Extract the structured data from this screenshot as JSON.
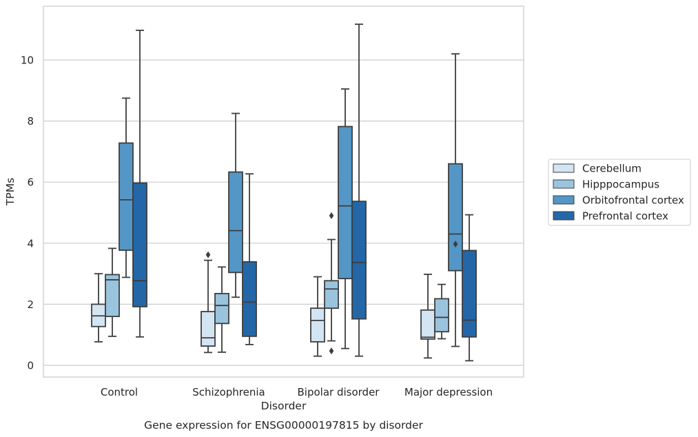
{
  "chart_data": {
    "type": "box",
    "caption": "Gene expression for ENSG00000197815 by disorder",
    "xlabel": "Disorder",
    "ylabel": "TPMs",
    "ylim": [
      -0.4,
      11.8
    ],
    "yticks": [
      0,
      2,
      4,
      6,
      8,
      10
    ],
    "grid": "horizontal",
    "legend_position": "right",
    "categories": [
      "Control",
      "Schizophrenia",
      "Bipolar disorder",
      "Major depression"
    ],
    "series": [
      {
        "name": "Cerebellum",
        "color": "#d3e4f3",
        "boxes": [
          {
            "whislo": 0.77,
            "q1": 1.27,
            "med": 1.62,
            "q3": 2.0,
            "whishi": 3.0,
            "fliers": []
          },
          {
            "whislo": 0.42,
            "q1": 0.63,
            "med": 0.9,
            "q3": 1.76,
            "whishi": 3.44,
            "fliers": [
              3.62
            ]
          },
          {
            "whislo": 0.3,
            "q1": 0.77,
            "med": 1.47,
            "q3": 1.87,
            "whishi": 2.9,
            "fliers": []
          },
          {
            "whislo": 0.24,
            "q1": 0.86,
            "med": 0.92,
            "q3": 1.81,
            "whishi": 2.98,
            "fliers": []
          }
        ]
      },
      {
        "name": "Hipppocampus",
        "color": "#9ac4de",
        "boxes": [
          {
            "whislo": 0.95,
            "q1": 1.6,
            "med": 2.8,
            "q3": 2.97,
            "whishi": 3.83,
            "fliers": []
          },
          {
            "whislo": 0.43,
            "q1": 1.37,
            "med": 1.96,
            "q3": 2.35,
            "whishi": 3.22,
            "fliers": []
          },
          {
            "whislo": 0.8,
            "q1": 1.87,
            "med": 2.5,
            "q3": 2.77,
            "whishi": 4.12,
            "fliers": [
              4.9,
              0.47
            ]
          },
          {
            "whislo": 0.87,
            "q1": 1.1,
            "med": 1.57,
            "q3": 2.18,
            "whishi": 2.65,
            "fliers": []
          }
        ]
      },
      {
        "name": "Orbitofrontal cortex",
        "color": "#5496c6",
        "boxes": [
          {
            "whislo": 2.88,
            "q1": 3.77,
            "med": 5.42,
            "q3": 7.28,
            "whishi": 8.75,
            "fliers": []
          },
          {
            "whislo": 2.23,
            "q1": 3.04,
            "med": 4.41,
            "q3": 6.33,
            "whishi": 8.25,
            "fliers": []
          },
          {
            "whislo": 0.55,
            "q1": 2.84,
            "med": 5.22,
            "q3": 7.82,
            "whishi": 9.05,
            "fliers": []
          },
          {
            "whislo": 0.62,
            "q1": 3.1,
            "med": 4.3,
            "q3": 6.6,
            "whishi": 10.2,
            "fliers": [
              3.97
            ]
          }
        ]
      },
      {
        "name": "Prefrontal cortex",
        "color": "#2467a8",
        "boxes": [
          {
            "whislo": 0.93,
            "q1": 1.92,
            "med": 2.77,
            "q3": 5.97,
            "whishi": 10.97,
            "fliers": []
          },
          {
            "whislo": 0.68,
            "q1": 0.95,
            "med": 2.07,
            "q3": 3.39,
            "whishi": 6.27,
            "fliers": []
          },
          {
            "whislo": 0.3,
            "q1": 1.52,
            "med": 3.37,
            "q3": 5.37,
            "whishi": 11.17,
            "fliers": []
          },
          {
            "whislo": 0.15,
            "q1": 0.93,
            "med": 1.48,
            "q3": 3.76,
            "whishi": 4.93,
            "fliers": []
          }
        ]
      }
    ]
  }
}
